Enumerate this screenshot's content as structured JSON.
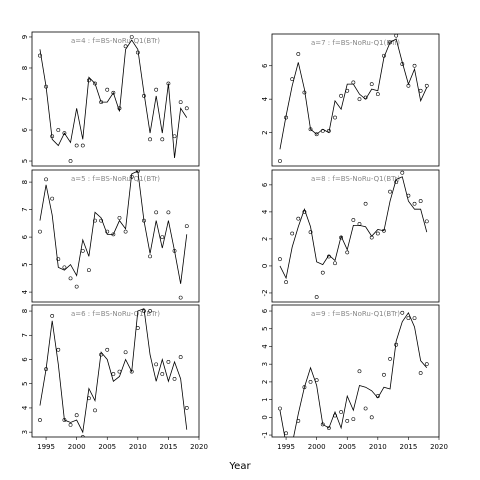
{
  "xlabel": "Year",
  "chart_data": [
    {
      "type": "line",
      "title": "a=4 : f=BS-NoRu-Q1(BTr)",
      "x": [
        1994,
        1995,
        1996,
        1997,
        1998,
        1999,
        2000,
        2001,
        2002,
        2003,
        2004,
        2005,
        2006,
        2007,
        2008,
        2009,
        2010,
        2011,
        2012,
        2013,
        2014,
        2015,
        2016,
        2017,
        2018
      ],
      "series": [
        {
          "type": "line",
          "color": "#000000",
          "values": [
            8.6,
            7.4,
            5.7,
            5.5,
            5.9,
            5.6,
            6.7,
            5.7,
            7.7,
            7.5,
            6.9,
            6.9,
            7.2,
            6.6,
            8.6,
            8.9,
            8.6,
            7.2,
            5.9,
            7.1,
            5.9,
            7.5,
            5.1,
            6.7,
            6.4
          ]
        },
        {
          "type": "scatter",
          "color": "#000000",
          "values": [
            8.4,
            7.4,
            5.8,
            6.0,
            5.9,
            5.0,
            5.5,
            5.5,
            7.6,
            7.5,
            6.9,
            7.3,
            7.2,
            6.7,
            8.7,
            9.0,
            8.5,
            7.1,
            5.7,
            7.3,
            5.7,
            7.5,
            5.8,
            6.9,
            6.7
          ]
        }
      ],
      "xlim": [
        1992.7,
        2020
      ],
      "ylim": [
        4.84,
        9.16
      ],
      "yticks": [
        5,
        6,
        7,
        8,
        9
      ]
    },
    {
      "type": "line",
      "title": "a=5 : f=BS-NoRu-Q1(BTr)",
      "x": [
        1994,
        1995,
        1996,
        1997,
        1998,
        1999,
        2000,
        2001,
        2002,
        2003,
        2004,
        2005,
        2006,
        2007,
        2008,
        2009,
        2010,
        2011,
        2012,
        2013,
        2014,
        2015,
        2016,
        2017,
        2018
      ],
      "series": [
        {
          "type": "line",
          "color": "#000000",
          "values": [
            6.6,
            7.9,
            6.8,
            4.9,
            4.8,
            5.0,
            4.6,
            5.9,
            5.3,
            6.9,
            6.7,
            6.1,
            6.1,
            6.6,
            6.3,
            8.3,
            8.4,
            6.6,
            5.4,
            6.6,
            5.6,
            6.6,
            5.5,
            4.3,
            6.1
          ]
        },
        {
          "type": "scatter",
          "color": "#000000",
          "values": [
            6.2,
            8.1,
            7.4,
            5.2,
            4.9,
            4.5,
            4.2,
            5.5,
            4.8,
            6.6,
            6.6,
            6.2,
            6.1,
            6.7,
            6.2,
            8.2,
            8.4,
            6.6,
            5.3,
            6.9,
            6.0,
            6.9,
            5.5,
            3.8,
            6.4
          ]
        }
      ],
      "xlim": [
        1992.7,
        2020
      ],
      "ylim": [
        3.64,
        8.44
      ],
      "yticks": [
        4,
        5,
        6,
        7,
        8
      ]
    },
    {
      "type": "line",
      "title": "a=6 : f=BS-NoRu-Q1(BTr)",
      "x": [
        1994,
        1995,
        1996,
        1997,
        1998,
        1999,
        2000,
        2001,
        2002,
        2003,
        2004,
        2005,
        2006,
        2007,
        2008,
        2009,
        2010,
        2011,
        2012,
        2013,
        2014,
        2015,
        2016,
        2017,
        2018
      ],
      "series": [
        {
          "type": "line",
          "color": "#000000",
          "values": [
            4.1,
            5.6,
            7.6,
            5.8,
            3.5,
            3.4,
            3.5,
            3.0,
            4.8,
            4.3,
            6.3,
            6.0,
            5.1,
            5.3,
            6.0,
            5.5,
            8.0,
            8.1,
            6.2,
            5.1,
            6.0,
            5.1,
            5.9,
            5.2,
            3.1
          ]
        },
        {
          "type": "scatter",
          "color": "#000000",
          "values": [
            3.5,
            5.6,
            7.8,
            6.4,
            3.5,
            3.3,
            3.7,
            2.8,
            4.4,
            3.9,
            6.2,
            6.4,
            5.4,
            5.5,
            6.3,
            5.5,
            7.3,
            8.0,
            8.0,
            5.8,
            5.4,
            5.9,
            5.2,
            6.1,
            4.0
          ]
        }
      ],
      "xlim": [
        1992.7,
        2020
      ],
      "ylim": [
        2.8,
        8.25
      ],
      "yticks": [
        3,
        4,
        5,
        6,
        7,
        8
      ],
      "xticks": [
        1995,
        2000,
        2005,
        2010,
        2015,
        2020
      ]
    },
    {
      "type": "line",
      "title": "a=7 : f=BS-NoRu-Q1(BTr)",
      "x": [
        1994,
        1995,
        1996,
        1997,
        1998,
        1999,
        2000,
        2001,
        2002,
        2003,
        2004,
        2005,
        2006,
        2007,
        2008,
        2009,
        2010,
        2011,
        2012,
        2013,
        2014,
        2015,
        2016,
        2017,
        2018
      ],
      "series": [
        {
          "type": "line",
          "color": "#000000",
          "values": [
            1.0,
            3.0,
            4.8,
            6.2,
            4.6,
            2.2,
            1.9,
            2.2,
            2.0,
            3.9,
            3.4,
            4.9,
            4.9,
            4.3,
            4.0,
            4.6,
            4.5,
            6.5,
            7.4,
            7.6,
            6.2,
            4.9,
            5.8,
            3.9,
            4.7
          ]
        },
        {
          "type": "scatter",
          "color": "#000000",
          "values": [
            0.3,
            2.9,
            5.2,
            6.7,
            4.4,
            2.2,
            1.9,
            2.1,
            2.1,
            2.9,
            4.2,
            4.5,
            5.0,
            4.0,
            4.1,
            4.9,
            4.3,
            6.6,
            7.4,
            7.8,
            6.1,
            4.8,
            6.0,
            4.5,
            4.8
          ]
        }
      ],
      "xlim": [
        1992.7,
        2020
      ],
      "ylim": [
        0,
        7.9
      ],
      "yticks": [
        2,
        4,
        6
      ]
    },
    {
      "type": "line",
      "title": "a=8 : f=BS-NoRu-Q1(BTr)",
      "x": [
        1994,
        1995,
        1996,
        1997,
        1998,
        1999,
        2000,
        2001,
        2002,
        2003,
        2004,
        2005,
        2006,
        2007,
        2008,
        2009,
        2010,
        2011,
        2012,
        2013,
        2014,
        2015,
        2016,
        2017,
        2018
      ],
      "series": [
        {
          "type": "line",
          "color": "#000000",
          "values": [
            0,
            -0.9,
            1.4,
            2.9,
            4.2,
            2.9,
            0.3,
            0.1,
            0.8,
            0.4,
            2.2,
            1.2,
            3.0,
            3.0,
            2.9,
            2.2,
            2.7,
            2.6,
            4.8,
            6.4,
            6.6,
            4.8,
            4.2,
            4.2,
            2.5
          ]
        },
        {
          "type": "scatter",
          "color": "#000000",
          "values": [
            0.5,
            -1.2,
            2.4,
            3.5,
            4.0,
            2.5,
            -2.3,
            -0.5,
            0.7,
            0.2,
            2.1,
            1.0,
            3.4,
            3.1,
            4.6,
            2.1,
            2.4,
            2.6,
            5.5,
            6.2,
            6.9,
            5.2,
            4.6,
            4.8,
            3.3
          ]
        }
      ],
      "xlim": [
        1992.7,
        2020
      ],
      "ylim": [
        -2.67,
        7.1
      ],
      "yticks": [
        -2,
        0,
        2,
        4,
        6
      ]
    },
    {
      "type": "line",
      "title": "a=9 : f=BS-NoRu-Q1(BTr)",
      "x": [
        1994,
        1995,
        1996,
        1997,
        1998,
        1999,
        2000,
        2001,
        2002,
        2003,
        2004,
        2005,
        2006,
        2007,
        2008,
        2009,
        2010,
        2011,
        2012,
        2013,
        2014,
        2015,
        2016,
        2017,
        2018
      ],
      "series": [
        {
          "type": "line",
          "color": "#000000",
          "values": [
            0.4,
            -1.5,
            -1.5,
            0.2,
            1.7,
            2.8,
            1.8,
            -0.4,
            -0.6,
            0.3,
            -0.6,
            1.2,
            0.4,
            1.8,
            1.7,
            1.5,
            1.1,
            1.7,
            1.6,
            4.3,
            5.4,
            5.9,
            5.1,
            3.2,
            2.8
          ]
        },
        {
          "type": "scatter",
          "color": "#000000",
          "values": [
            0.5,
            -0.9,
            -1.4,
            -0.2,
            1.7,
            2.0,
            2.1,
            -0.4,
            -0.6,
            0.1,
            0.3,
            -0.2,
            -0.1,
            2.6,
            0.5,
            0.0,
            1.2,
            2.4,
            3.3,
            4.1,
            5.9,
            5.6,
            5.6,
            2.5,
            3.0
          ]
        }
      ],
      "xlim": [
        1992.7,
        2020
      ],
      "ylim": [
        -1.11,
        6.34
      ],
      "yticks": [
        -1,
        0,
        1,
        2,
        3,
        4,
        5,
        6
      ],
      "xticks": [
        1995,
        2000,
        2005,
        2010,
        2015,
        2020
      ]
    }
  ]
}
